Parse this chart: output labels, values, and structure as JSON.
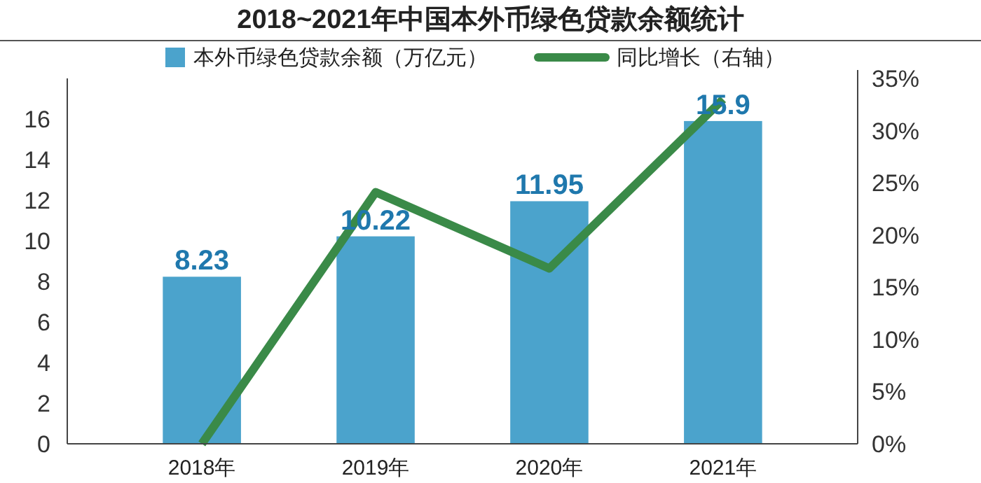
{
  "chart_data": {
    "type": "bar",
    "title": "2018~2021年中国本外币绿色贷款余额统计",
    "categories": [
      "2018年",
      "2019年",
      "2020年",
      "2021年"
    ],
    "series": [
      {
        "name": "本外币绿色贷款余额（万亿元）",
        "color": "#4ba3cc",
        "values": [
          8.23,
          10.22,
          11.95,
          15.9
        ],
        "value_labels": [
          "8.23",
          "10.22",
          "11.95",
          "15.9"
        ]
      },
      {
        "name": "同比增长（右轴）",
        "type": "line",
        "axis": "y2",
        "color": "#3a8a48",
        "values": [
          0,
          24.1,
          16.8,
          33.0
        ]
      }
    ],
    "ylim": [
      0,
      18
    ],
    "yticks": [
      0,
      2,
      4,
      6,
      8,
      10,
      12,
      14,
      16
    ],
    "y2lim": [
      0,
      35
    ],
    "y2ticks": [
      {
        "value": 0,
        "label": "0%"
      },
      {
        "value": 5,
        "label": "5%"
      },
      {
        "value": 10,
        "label": "10%"
      },
      {
        "value": 15,
        "label": "15%"
      },
      {
        "value": 20,
        "label": "20%"
      },
      {
        "value": 25,
        "label": "25%"
      },
      {
        "value": 30,
        "label": "30%"
      },
      {
        "value": 35,
        "label": "35%"
      }
    ],
    "legend": "top",
    "grid": false,
    "marker": "none"
  }
}
